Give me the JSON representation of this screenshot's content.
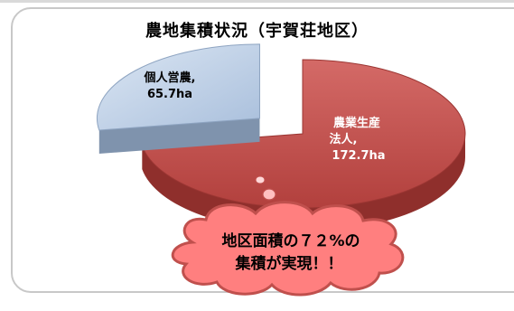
{
  "chart_data": {
    "type": "pie",
    "title": "農地集積状況（宇賀荘地区）",
    "series": [
      {
        "name": "",
        "values": [
          172.7,
          65.7
        ]
      }
    ],
    "slices": [
      {
        "label_line1": "農業生産",
        "label_line2": "法人,",
        "value_text": "172.7ha",
        "value": 172.7,
        "unit": "ha",
        "color": "#c0504d"
      },
      {
        "label_line1": "個人営農,",
        "label_line2": "",
        "value_text": "65.7ha",
        "value": 65.7,
        "unit": "ha",
        "color": "#b9cde5"
      }
    ],
    "style": "3d-exploded",
    "legend": "none"
  },
  "callout": {
    "line1": "地区面積の７２%の",
    "line2": "集積が実現！！",
    "color": "#ff7f7f",
    "border_color": "#c0504d"
  }
}
